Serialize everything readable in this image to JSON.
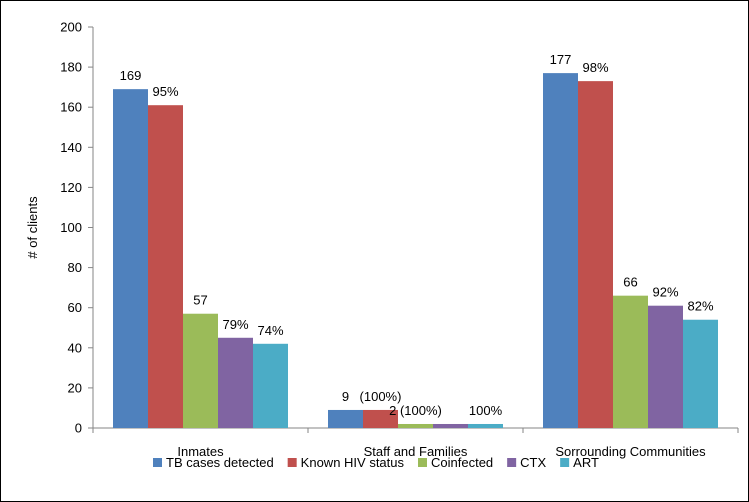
{
  "chart_data": {
    "type": "bar",
    "title": "",
    "xlabel": "",
    "ylabel": "# of clients",
    "ylim": [
      0,
      200
    ],
    "yticks": [
      0,
      20,
      40,
      60,
      80,
      100,
      120,
      140,
      160,
      180,
      200
    ],
    "grid": false,
    "legend_position": "bottom",
    "categories": [
      "Inmates",
      "Staff and Families",
      "Sorrounding Communities"
    ],
    "series": [
      {
        "name": "TB cases detected",
        "color": "#4F81BD",
        "values": [
          169,
          9,
          177
        ],
        "labels": [
          "169",
          "9",
          "177"
        ]
      },
      {
        "name": "Known HIV status",
        "color": "#C0504D",
        "values": [
          161,
          9,
          173
        ],
        "labels": [
          "95%",
          "(100%)",
          "98%"
        ]
      },
      {
        "name": "Coinfected",
        "color": "#9BBB59",
        "values": [
          57,
          2,
          66
        ],
        "labels": [
          "57",
          "2 (100%)",
          "66"
        ]
      },
      {
        "name": "CTX",
        "color": "#8064A2",
        "values": [
          45,
          2,
          61
        ],
        "labels": [
          "79%",
          "",
          "92%"
        ]
      },
      {
        "name": "ART",
        "color": "#4BACC6",
        "values": [
          42,
          2,
          54
        ],
        "labels": [
          "74%",
          "100%",
          "82%"
        ]
      }
    ]
  }
}
